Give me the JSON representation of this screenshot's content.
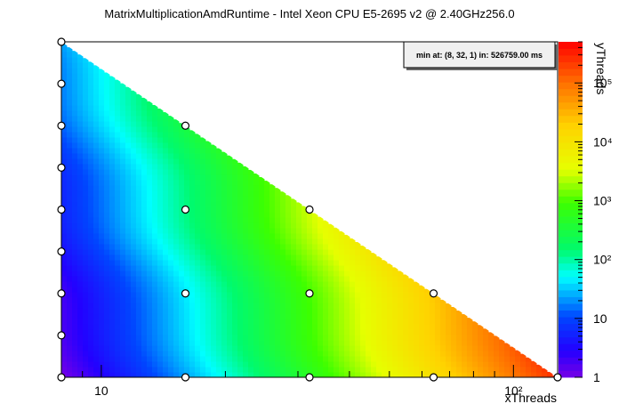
{
  "chart_data": {
    "type": "heatmap",
    "title": "MatrixMultiplicationAmdRuntime - Intel Xeon CPU E5-2695 v2 @ 2.40GHz256.0",
    "xlabel": "xThreads",
    "ylabel": "yThreads",
    "x_scale": "log",
    "y_scale": "log2",
    "z_scale": "log",
    "xlim": [
      8,
      128
    ],
    "ylim": [
      1,
      256
    ],
    "x_ticks": [
      {
        "value": 10,
        "label": "10"
      },
      {
        "value": 100,
        "label": "10²"
      }
    ],
    "colorbar": {
      "zlim": [
        1,
        500000
      ],
      "ticks": [
        {
          "value": 1,
          "label": "1"
        },
        {
          "value": 10,
          "label": "10"
        },
        {
          "value": 100,
          "label": "10²"
        },
        {
          "value": 1000,
          "label": "10³"
        },
        {
          "value": 10000,
          "label": "10⁴"
        },
        {
          "value": 100000,
          "label": "10⁵"
        }
      ]
    },
    "annotation": "min at: (8, 32, 1) in: 526759.00 ms",
    "points": [
      {
        "x": 8,
        "y": 1
      },
      {
        "x": 8,
        "y": 2
      },
      {
        "x": 8,
        "y": 4
      },
      {
        "x": 8,
        "y": 8
      },
      {
        "x": 8,
        "y": 16
      },
      {
        "x": 8,
        "y": 32
      },
      {
        "x": 8,
        "y": 64
      },
      {
        "x": 8,
        "y": 128
      },
      {
        "x": 8,
        "y": 256
      },
      {
        "x": 16,
        "y": 1
      },
      {
        "x": 16,
        "y": 4
      },
      {
        "x": 16,
        "y": 16
      },
      {
        "x": 16,
        "y": 64
      },
      {
        "x": 32,
        "y": 1
      },
      {
        "x": 32,
        "y": 4
      },
      {
        "x": 32,
        "y": 16
      },
      {
        "x": 64,
        "y": 1
      },
      {
        "x": 64,
        "y": 4
      },
      {
        "x": 128,
        "y": 1
      }
    ]
  }
}
